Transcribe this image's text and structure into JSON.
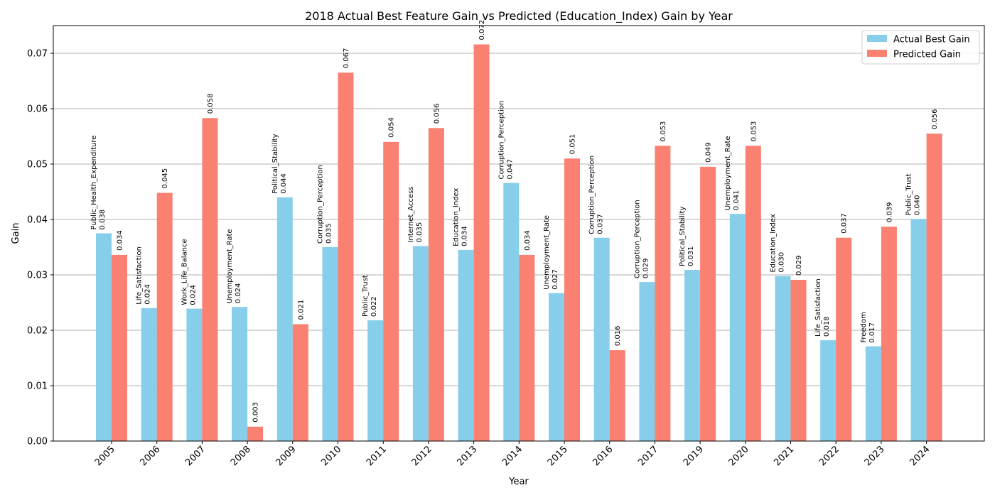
{
  "chart_data": {
    "type": "bar",
    "title": "2018 Actual Best Feature Gain vs Predicted (Education_Index) Gain by Year",
    "xlabel": "Year",
    "ylabel": "Gain",
    "ylim": [
      0,
      0.075
    ],
    "yticks": [
      "0.00",
      "0.01",
      "0.02",
      "0.03",
      "0.04",
      "0.05",
      "0.06",
      "0.07"
    ],
    "grid": "y",
    "legend": "top-right",
    "categories": [
      "2005",
      "2006",
      "2007",
      "2008",
      "2009",
      "2010",
      "2011",
      "2012",
      "2013",
      "2014",
      "2015",
      "2016",
      "2017",
      "2019",
      "2020",
      "2021",
      "2022",
      "2023",
      "2024"
    ],
    "series": [
      {
        "name": "Actual Best Gain",
        "color": "#87ceeb",
        "values": [
          0.0375,
          0.024,
          0.0239,
          0.0242,
          0.044,
          0.035,
          0.0218,
          0.0352,
          0.0345,
          0.0466,
          0.0267,
          0.0367,
          0.0287,
          0.0309,
          0.041,
          0.0298,
          0.0182,
          0.0171,
          0.0401
        ],
        "value_labels": [
          "0.038",
          "0.024",
          "0.024",
          "0.024",
          "0.044",
          "0.035",
          "0.022",
          "0.035",
          "0.034",
          "0.047",
          "0.027",
          "0.037",
          "0.029",
          "0.031",
          "0.041",
          "0.030",
          "0.018",
          "0.017",
          "0.040"
        ],
        "feature_labels": [
          "Public_Health_Expenditure",
          "Life_Satisfaction",
          "Work_Life_Balance",
          "Unemployment_Rate",
          "Political_Stability",
          "Corruption_Perception",
          "Public_Trust",
          "Internet_Access",
          "Education_Index",
          "Corruption_Perception",
          "Unemployment_Rate",
          "Corruption_Perception",
          "Corruption_Perception",
          "Political_Stability",
          "Unemployment_Rate",
          "Education_Index",
          "Life_Satisfaction",
          "Freedom",
          "Public_Trust"
        ]
      },
      {
        "name": "Predicted Gain",
        "color": "#fa8072",
        "values": [
          0.0336,
          0.0448,
          0.0583,
          0.0026,
          0.0211,
          0.0665,
          0.054,
          0.0565,
          0.0716,
          0.0336,
          0.051,
          0.0164,
          0.0533,
          0.0495,
          0.0533,
          0.0291,
          0.0367,
          0.0387,
          0.0555
        ],
        "value_labels": [
          "0.034",
          "0.045",
          "0.058",
          "0.003",
          "0.021",
          "0.067",
          "0.054",
          "0.056",
          "0.072",
          "0.034",
          "0.051",
          "0.016",
          "0.053",
          "0.049",
          "0.053",
          "0.029",
          "0.037",
          "0.039",
          "0.056"
        ]
      }
    ]
  }
}
